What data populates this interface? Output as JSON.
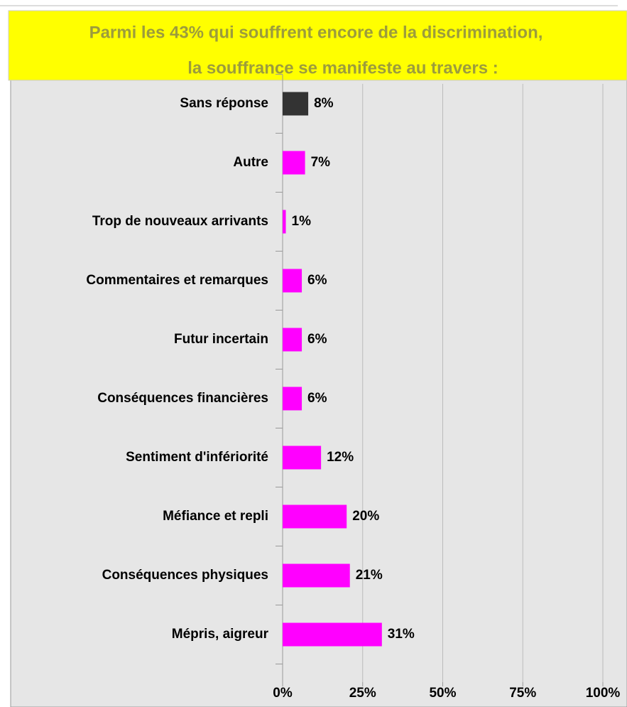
{
  "chart_data": {
    "type": "barh",
    "title": [
      "Parmi les 43% qui souffrent encore de la discrimination,",
      "la souffrance se manifeste au travers :"
    ],
    "categories": [
      "Sans réponse",
      "Autre",
      "Trop de nouveaux arrivants",
      "Commentaires et remarques",
      "Futur incertain",
      "Conséquences financières",
      "Sentiment d'infériorité",
      "Méfiance et repli",
      "Conséquences physiques",
      "Mépris, aigreur"
    ],
    "values": [
      8,
      7,
      1,
      6,
      6,
      6,
      12,
      20,
      21,
      31
    ],
    "value_labels": [
      "8%",
      "7%",
      "1%",
      "6%",
      "6%",
      "6%",
      "12%",
      "20%",
      "21%",
      "31%"
    ],
    "colors": [
      "#333333",
      "#ff00ff",
      "#ff00ff",
      "#ff00ff",
      "#ff00ff",
      "#ff00ff",
      "#ff00ff",
      "#ff00ff",
      "#ff00ff",
      "#ff00ff"
    ],
    "xlim": [
      0,
      100
    ],
    "xticks": [
      {
        "value": 0,
        "label": "0%"
      },
      {
        "value": 25,
        "label": "25%"
      },
      {
        "value": 50,
        "label": "50%"
      },
      {
        "value": 75,
        "label": "75%"
      },
      {
        "value": 100,
        "label": "100%"
      }
    ],
    "grid": true
  }
}
